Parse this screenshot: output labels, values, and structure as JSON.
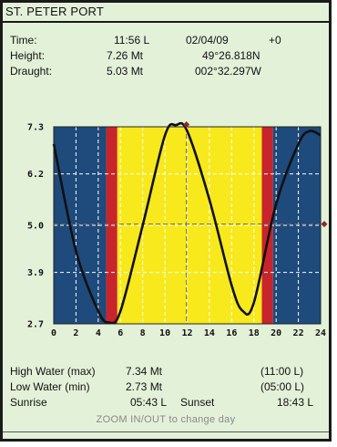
{
  "header": {
    "title": "ST. PETER PORT"
  },
  "info": {
    "time_label": "Time:",
    "time_value": "11:56 L",
    "date": "02/04/09",
    "offset": "+0",
    "height_label": "Height:",
    "height_value": "7.26 Mt",
    "latitude": "49°26.818N",
    "draught_label": "Draught:",
    "draught_value": "5.03 Mt",
    "longitude": "002°32.297W"
  },
  "chart_data": {
    "type": "line",
    "x_ticks": [
      "0",
      "2",
      "4",
      "6",
      "8",
      "10",
      "12",
      "14",
      "16",
      "18",
      "20",
      "22",
      "24"
    ],
    "y_ticks": [
      "7.3",
      "6.2",
      "5.0",
      "3.9",
      "2.7"
    ],
    "xlim": [
      0,
      24
    ],
    "ylim": [
      2.7,
      7.3
    ],
    "grid": true,
    "day_bands": [
      {
        "name": "night",
        "from": 0,
        "to": 4.717,
        "color": "#1e4a7c"
      },
      {
        "name": "twilight",
        "from": 4.717,
        "to": 5.717,
        "color": "#c8242b"
      },
      {
        "name": "day",
        "from": 5.717,
        "to": 18.717,
        "color": "#f7e91c"
      },
      {
        "name": "twilight",
        "from": 18.717,
        "to": 19.717,
        "color": "#c8242b"
      },
      {
        "name": "night",
        "from": 19.717,
        "to": 24,
        "color": "#1e4a7c"
      }
    ],
    "tide_curve": {
      "x": [
        0,
        2,
        4,
        5,
        6,
        8,
        10,
        11,
        12,
        14,
        16,
        17,
        18,
        20,
        22,
        23,
        24
      ],
      "y": [
        6.9,
        4.4,
        3.0,
        2.73,
        3.0,
        5.0,
        7.1,
        7.34,
        7.2,
        5.6,
        3.6,
        3.0,
        3.2,
        5.5,
        6.9,
        7.2,
        7.1
      ]
    },
    "current_time": 11.93,
    "current_height": 7.26,
    "draught": 5.03,
    "line_color": "#111111",
    "marker_color": "#8b2a2a"
  },
  "footer": {
    "high_label": "High Water (max)",
    "high_value": "7.34 Mt",
    "high_time": "(11:00 L)",
    "low_label": "Low Water  (min)",
    "low_value": "2.73 Mt",
    "low_time": "(05:00 L)",
    "sunrise_label": "Sunrise",
    "sunrise_value": "05:43 L",
    "sunset_label": "Sunset",
    "sunset_value": "18:43 L",
    "hint": "ZOOM IN/OUT to change day"
  }
}
